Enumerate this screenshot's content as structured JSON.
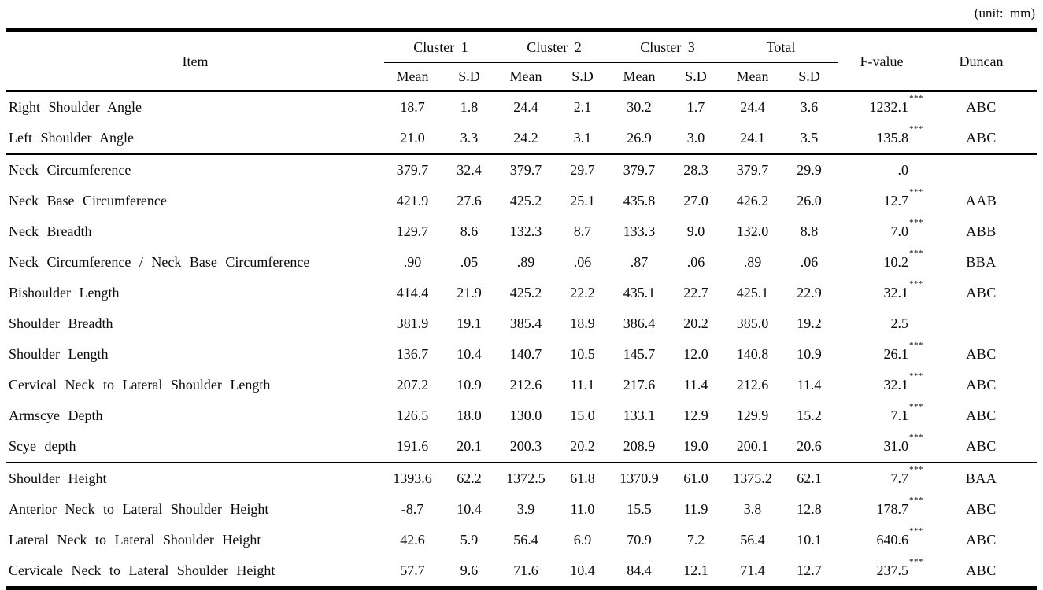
{
  "unit_label": "(unit: mm)",
  "table": {
    "headers": {
      "item": "Item",
      "groups": [
        "Cluster 1",
        "Cluster 2",
        "Cluster 3",
        "Total"
      ],
      "sub_mean": "Mean",
      "sub_sd": "S.D",
      "f_value": "F-value",
      "duncan": "Duncan"
    },
    "rows": [
      {
        "item": "Right Shoulder Angle",
        "values": [
          "18.7",
          "1.8",
          "24.4",
          "2.1",
          "30.2",
          "1.7",
          "24.4",
          "3.6"
        ],
        "f": "1232.1",
        "stars": "***",
        "duncan": "ABC",
        "group_start": false
      },
      {
        "item": "Left Shoulder Angle",
        "values": [
          "21.0",
          "3.3",
          "24.2",
          "3.1",
          "26.9",
          "3.0",
          "24.1",
          "3.5"
        ],
        "f": "135.8",
        "stars": "***",
        "duncan": "ABC",
        "group_start": false
      },
      {
        "item": "Neck Circumference",
        "values": [
          "379.7",
          "32.4",
          "379.7",
          "29.7",
          "379.7",
          "28.3",
          "379.7",
          "29.9"
        ],
        "f": ".0",
        "stars": "",
        "duncan": "",
        "group_start": true
      },
      {
        "item": "Neck Base Circumference",
        "values": [
          "421.9",
          "27.6",
          "425.2",
          "25.1",
          "435.8",
          "27.0",
          "426.2",
          "26.0"
        ],
        "f": "12.7",
        "stars": "***",
        "duncan": "AAB",
        "group_start": false
      },
      {
        "item": "Neck Breadth",
        "values": [
          "129.7",
          "8.6",
          "132.3",
          "8.7",
          "133.3",
          "9.0",
          "132.0",
          "8.8"
        ],
        "f": "7.0",
        "stars": "***",
        "duncan": "ABB",
        "group_start": false
      },
      {
        "item": "Neck Circumference / Neck Base Circumference",
        "values": [
          ".90",
          ".05",
          ".89",
          ".06",
          ".87",
          ".06",
          ".89",
          ".06"
        ],
        "f": "10.2",
        "stars": "***",
        "duncan": "BBA",
        "group_start": false
      },
      {
        "item": "Bishoulder Length",
        "values": [
          "414.4",
          "21.9",
          "425.2",
          "22.2",
          "435.1",
          "22.7",
          "425.1",
          "22.9"
        ],
        "f": "32.1",
        "stars": "***",
        "duncan": "ABC",
        "group_start": false
      },
      {
        "item": "Shoulder Breadth",
        "values": [
          "381.9",
          "19.1",
          "385.4",
          "18.9",
          "386.4",
          "20.2",
          "385.0",
          "19.2"
        ],
        "f": "2.5",
        "stars": "",
        "duncan": "",
        "group_start": false
      },
      {
        "item": "Shoulder Length",
        "values": [
          "136.7",
          "10.4",
          "140.7",
          "10.5",
          "145.7",
          "12.0",
          "140.8",
          "10.9"
        ],
        "f": "26.1",
        "stars": "***",
        "duncan": "ABC",
        "group_start": false
      },
      {
        "item": "Cervical Neck to Lateral Shoulder Length",
        "values": [
          "207.2",
          "10.9",
          "212.6",
          "11.1",
          "217.6",
          "11.4",
          "212.6",
          "11.4"
        ],
        "f": "32.1",
        "stars": "***",
        "duncan": "ABC",
        "group_start": false
      },
      {
        "item": "Armscye Depth",
        "values": [
          "126.5",
          "18.0",
          "130.0",
          "15.0",
          "133.1",
          "12.9",
          "129.9",
          "15.2"
        ],
        "f": "7.1",
        "stars": "***",
        "duncan": "ABC",
        "group_start": false
      },
      {
        "item": "Scye depth",
        "values": [
          "191.6",
          "20.1",
          "200.3",
          "20.2",
          "208.9",
          "19.0",
          "200.1",
          "20.6"
        ],
        "f": "31.0",
        "stars": "***",
        "duncan": "ABC",
        "group_start": false
      },
      {
        "item": "Shoulder Height",
        "values": [
          "1393.6",
          "62.2",
          "1372.5",
          "61.8",
          "1370.9",
          "61.0",
          "1375.2",
          "62.1"
        ],
        "f": "7.7",
        "stars": "***",
        "duncan": "BAA",
        "group_start": true
      },
      {
        "item": "Anterior Neck to Lateral Shoulder Height",
        "values": [
          "-8.7",
          "10.4",
          "3.9",
          "11.0",
          "15.5",
          "11.9",
          "3.8",
          "12.8"
        ],
        "f": "178.7",
        "stars": "***",
        "duncan": "ABC",
        "group_start": false
      },
      {
        "item": "Lateral Neck to Lateral Shoulder Height",
        "values": [
          "42.6",
          "5.9",
          "56.4",
          "6.9",
          "70.9",
          "7.2",
          "56.4",
          "10.1"
        ],
        "f": "640.6",
        "stars": "***",
        "duncan": "ABC",
        "group_start": false
      },
      {
        "item": "Cervicale Neck to Lateral Shoulder Height",
        "values": [
          "57.7",
          "9.6",
          "71.6",
          "10.4",
          "84.4",
          "12.1",
          "71.4",
          "12.7"
        ],
        "f": "237.5",
        "stars": "***",
        "duncan": "ABC",
        "group_start": false
      }
    ]
  }
}
